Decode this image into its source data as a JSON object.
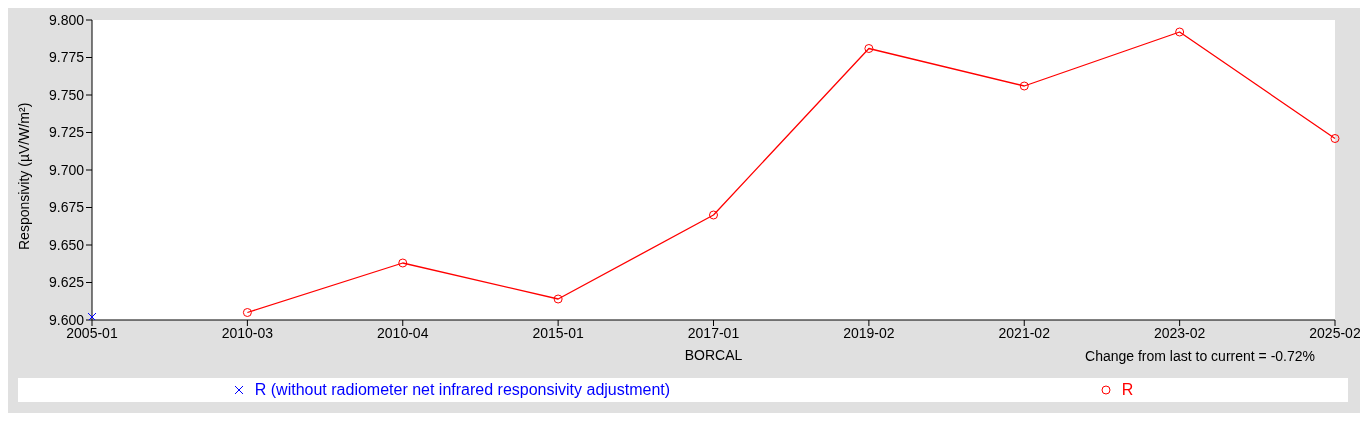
{
  "chart_data": {
    "type": "line",
    "xlabel": "BORCAL",
    "ylabel": "Responsivity (µV/W/m²)",
    "categories": [
      "2005-01",
      "2010-03",
      "2010-04",
      "2015-01",
      "2017-01",
      "2019-02",
      "2021-02",
      "2023-02",
      "2025-02"
    ],
    "series": [
      {
        "name": "R (without radiometer net infrared responsivity adjustment)",
        "color": "#0000ff",
        "marker": "cross",
        "values": [
          9.602,
          null,
          null,
          null,
          null,
          null,
          null,
          null,
          null
        ]
      },
      {
        "name": "R",
        "color": "#ff0000",
        "marker": "circle",
        "values": [
          null,
          9.605,
          9.638,
          9.614,
          9.67,
          9.781,
          9.756,
          9.792,
          9.721
        ]
      }
    ],
    "ylim": [
      9.6,
      9.8
    ],
    "yticks": [
      {
        "value": 9.6,
        "label": "9.600"
      },
      {
        "value": 9.625,
        "label": "9.625"
      },
      {
        "value": 9.65,
        "label": "9.650"
      },
      {
        "value": 9.675,
        "label": "9.675"
      },
      {
        "value": 9.7,
        "label": "9.700"
      },
      {
        "value": 9.725,
        "label": "9.725"
      },
      {
        "value": 9.75,
        "label": "9.750"
      },
      {
        "value": 9.775,
        "label": "9.775"
      },
      {
        "value": 9.8,
        "label": "9.800"
      }
    ],
    "annotations": [
      "Change from last to current = -0.72%"
    ],
    "legend": "bottom",
    "grid": false,
    "line_style": "solid"
  }
}
